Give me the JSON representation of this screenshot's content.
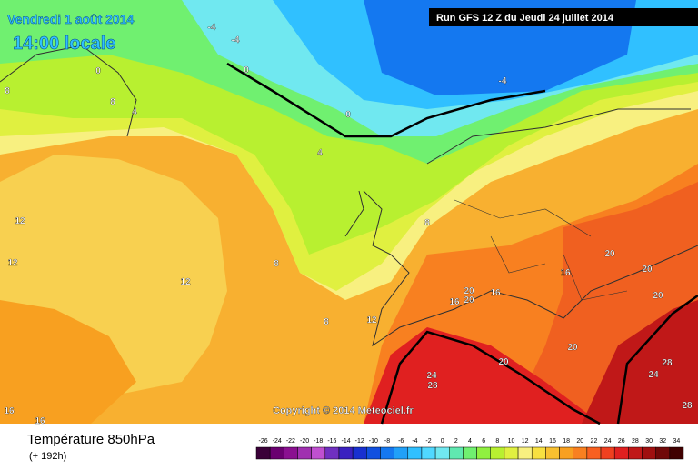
{
  "header": {
    "date": "Vendredi 1 août 2014",
    "time": "14:00 locale",
    "run": "Run GFS 12 Z du Jeudi 24 juillet 2014"
  },
  "map": {
    "copyright": "Copyright © 2014 Meteociel.fr",
    "contour_labels": [
      "-4",
      "-4",
      "0",
      "0",
      "8",
      "8",
      "4",
      "0",
      "-4",
      "4",
      "12",
      "12",
      "12",
      "8",
      "8",
      "8",
      "12",
      "16",
      "20",
      "20",
      "20",
      "16",
      "20",
      "20",
      "16",
      "20",
      "20",
      "24",
      "28",
      "28",
      "24",
      "28",
      "16",
      "16"
    ]
  },
  "footer": {
    "title": "Température 850hPa",
    "subtitle": "(+ 192h)"
  },
  "legend": {
    "labels": [
      "-26",
      "-24",
      "-22",
      "-20",
      "-18",
      "-16",
      "-14",
      "-12",
      "-10",
      "-8",
      "-6",
      "-4",
      "-2",
      "0",
      "2",
      "4",
      "6",
      "8",
      "10",
      "12",
      "14",
      "16",
      "18",
      "20",
      "22",
      "24",
      "26",
      "28",
      "30",
      "32",
      "34"
    ],
    "colors": [
      "#3a0038",
      "#6a0070",
      "#8a1090",
      "#a030b0",
      "#c050d0",
      "#7030c0",
      "#3a20c0",
      "#1830d0",
      "#1050e0",
      "#1478f0",
      "#20a0f8",
      "#30c0ff",
      "#50d8ff",
      "#70e8f0",
      "#60e8b0",
      "#70f070",
      "#90f040",
      "#b8f030",
      "#e0f040",
      "#f8f080",
      "#f8e040",
      "#f8c030",
      "#f8a020",
      "#f88020",
      "#f86020",
      "#f04020",
      "#e02020",
      "#c01818",
      "#a01010",
      "#700808",
      "#400000"
    ]
  }
}
